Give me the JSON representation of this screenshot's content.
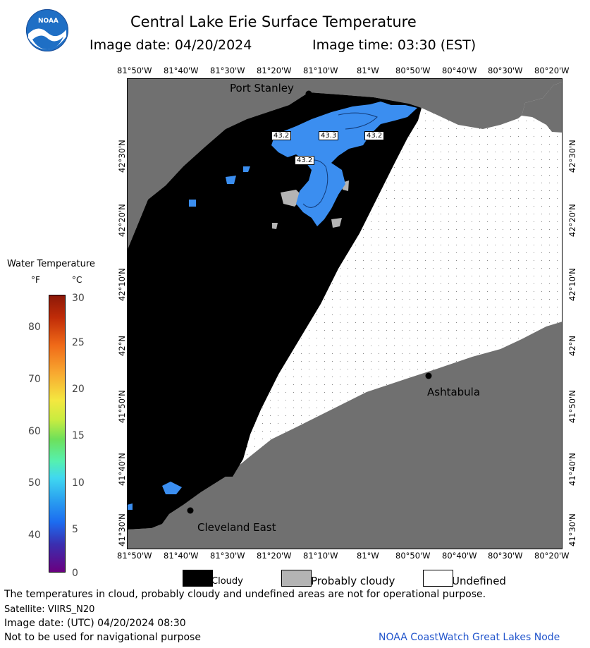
{
  "header": {
    "title": "Central Lake Erie Surface Temperature",
    "image_date": "Image date: 04/20/2024",
    "image_time": "Image time: 03:30 (EST)"
  },
  "logo": {
    "text": "NOAA"
  },
  "axes": {
    "longitude_labels": [
      "81°50'W",
      "81°40'W",
      "81°30'W",
      "81°20'W",
      "81°10'W",
      "81°W",
      "80°50'W",
      "80°40'W",
      "80°30'W",
      "80°20'W"
    ],
    "latitude_labels": [
      "42°30'N",
      "42°20'N",
      "42°10'N",
      "42°N",
      "41°50'N",
      "41°40'N",
      "41°30'N"
    ]
  },
  "places": {
    "port_stanley": "Port Stanley",
    "ashtabula": "Ashtabula",
    "cleveland_east": "Cleveland East"
  },
  "isotherm_labels": [
    "43.2",
    "43.3",
    "43.2",
    "43.2"
  ],
  "colorbar": {
    "title": "Water Temperature",
    "unit_f": "°F",
    "unit_c": "°C",
    "f_ticks": [
      "80",
      "70",
      "60",
      "50",
      "40"
    ],
    "c_ticks": [
      "30",
      "25",
      "20",
      "15",
      "10",
      "5",
      "0"
    ]
  },
  "legend": {
    "cloudy": "Cloudy",
    "probably_cloudy": "Probably cloudy",
    "undefined": "Undefined"
  },
  "footer": {
    "disclaimer": "The temperatures in cloud, probably cloudy and undefined areas are not for operational purpose.",
    "satellite": "Satellite: VIIRS_N20",
    "utc_date": "Image date: (UTC) 04/20/2024  08:30",
    "nav_warning": "Not to be used for navigational purpose",
    "credit": "NOAA CoastWatch Great Lakes Node"
  },
  "colors": {
    "land": "#707070",
    "cloud": "#000000",
    "probably_cloud": "#b4b4b4",
    "undefined": "#ffffff",
    "water_temp": "#3b8ef0"
  }
}
